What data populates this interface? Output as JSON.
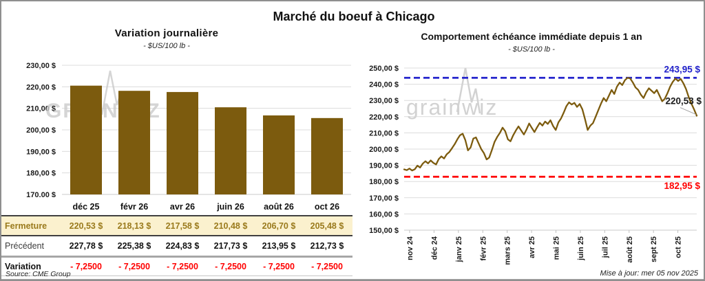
{
  "frame": {
    "title": "Marché du boeuf à Chicago"
  },
  "left_chart": {
    "title": "Variation journalière",
    "subtitle": "- $US/100 lb -",
    "watermark": "GRAINWIZ",
    "chart_data": {
      "type": "bar",
      "categories": [
        "déc 25",
        "févr 26",
        "avr 26",
        "juin 26",
        "août 26",
        "oct 26"
      ],
      "values": [
        220.53,
        218.13,
        217.58,
        210.48,
        206.7,
        205.48
      ],
      "ylim": [
        170,
        230
      ],
      "ytick_step": 10,
      "ytick_suffix": " $",
      "grid": true,
      "bar_color": "#7c5b0e",
      "grid_color": "#dcdcdc"
    },
    "table": {
      "columns": [
        "déc 25",
        "févr 26",
        "avr 26",
        "juin 26",
        "août 26",
        "oct 26"
      ],
      "rows": [
        {
          "label": "Fermeture",
          "style": "close",
          "values": [
            "220,53 $",
            "218,13 $",
            "217,58 $",
            "210,48 $",
            "206,70 $",
            "205,48 $"
          ]
        },
        {
          "label": "Précédent",
          "style": "previous",
          "values": [
            "227,78 $",
            "225,38 $",
            "224,83 $",
            "217,73 $",
            "213,95 $",
            "212,73 $"
          ]
        },
        {
          "label": "Variation",
          "style": "variation",
          "values": [
            "- 7,2500",
            "- 7,2500",
            "- 7,2500",
            "- 7,2500",
            "- 7,2500",
            "- 7,2500"
          ]
        }
      ]
    },
    "source": "Source: CME Group"
  },
  "right_chart": {
    "title": "Comportement échéance immédiate depuis 1 an",
    "subtitle": "- $US/100 lb -",
    "watermark": "grainwiz",
    "updated": "Mise à jour: mer 05 nov 2025",
    "chart_data": {
      "type": "line",
      "x_labels": [
        "nov 24",
        "déc 24",
        "janv 25",
        "févr 25",
        "mars 25",
        "avr 25",
        "mai 25",
        "juin 25",
        "juil 25",
        "août 25",
        "sept 25",
        "oct 25"
      ],
      "ylim": [
        150,
        250
      ],
      "ytick_step": 10,
      "line_color": "#7c5b0e",
      "grid_color": "#dcdcdc",
      "high_line": {
        "value": 243.95,
        "label": "243,95 $",
        "color": "#2222cc"
      },
      "low_line": {
        "value": 182.95,
        "label": "182,95 $",
        "color": "#ff0000"
      },
      "last_point": {
        "value": 220.53,
        "label": "220,53 $"
      },
      "values": [
        187.5,
        187.0,
        188.0,
        186.8,
        187.6,
        189.8,
        188.6,
        191.0,
        192.5,
        191.2,
        193.0,
        191.5,
        190.5,
        193.8,
        195.5,
        194.2,
        196.8,
        198.2,
        200.5,
        203.0,
        206.0,
        208.5,
        209.5,
        205.5,
        199.2,
        201.0,
        206.5,
        207.2,
        203.5,
        200.0,
        197.5,
        193.6,
        194.8,
        199.5,
        204.5,
        207.5,
        210.0,
        213.2,
        211.0,
        206.0,
        204.8,
        208.5,
        211.5,
        214.0,
        211.5,
        209.0,
        212.0,
        215.8,
        213.0,
        210.5,
        213.5,
        216.2,
        214.5,
        217.0,
        215.5,
        217.8,
        214.2,
        211.8,
        216.5,
        219.0,
        222.5,
        226.5,
        228.8,
        227.5,
        228.5,
        226.0,
        227.8,
        224.5,
        218.5,
        211.8,
        214.5,
        216.0,
        220.0,
        224.0,
        228.0,
        231.5,
        229.5,
        233.0,
        236.5,
        234.0,
        238.5,
        241.0,
        239.5,
        242.5,
        244.0,
        243.5,
        241.0,
        238.0,
        236.5,
        233.5,
        231.5,
        235.0,
        237.5,
        236.0,
        234.5,
        236.5,
        233.0,
        229.5,
        231.0,
        234.5,
        238.5,
        241.5,
        243.5,
        242.0,
        243.3,
        240.5,
        237.0,
        232.0,
        228.0,
        224.5,
        220.53
      ]
    }
  }
}
